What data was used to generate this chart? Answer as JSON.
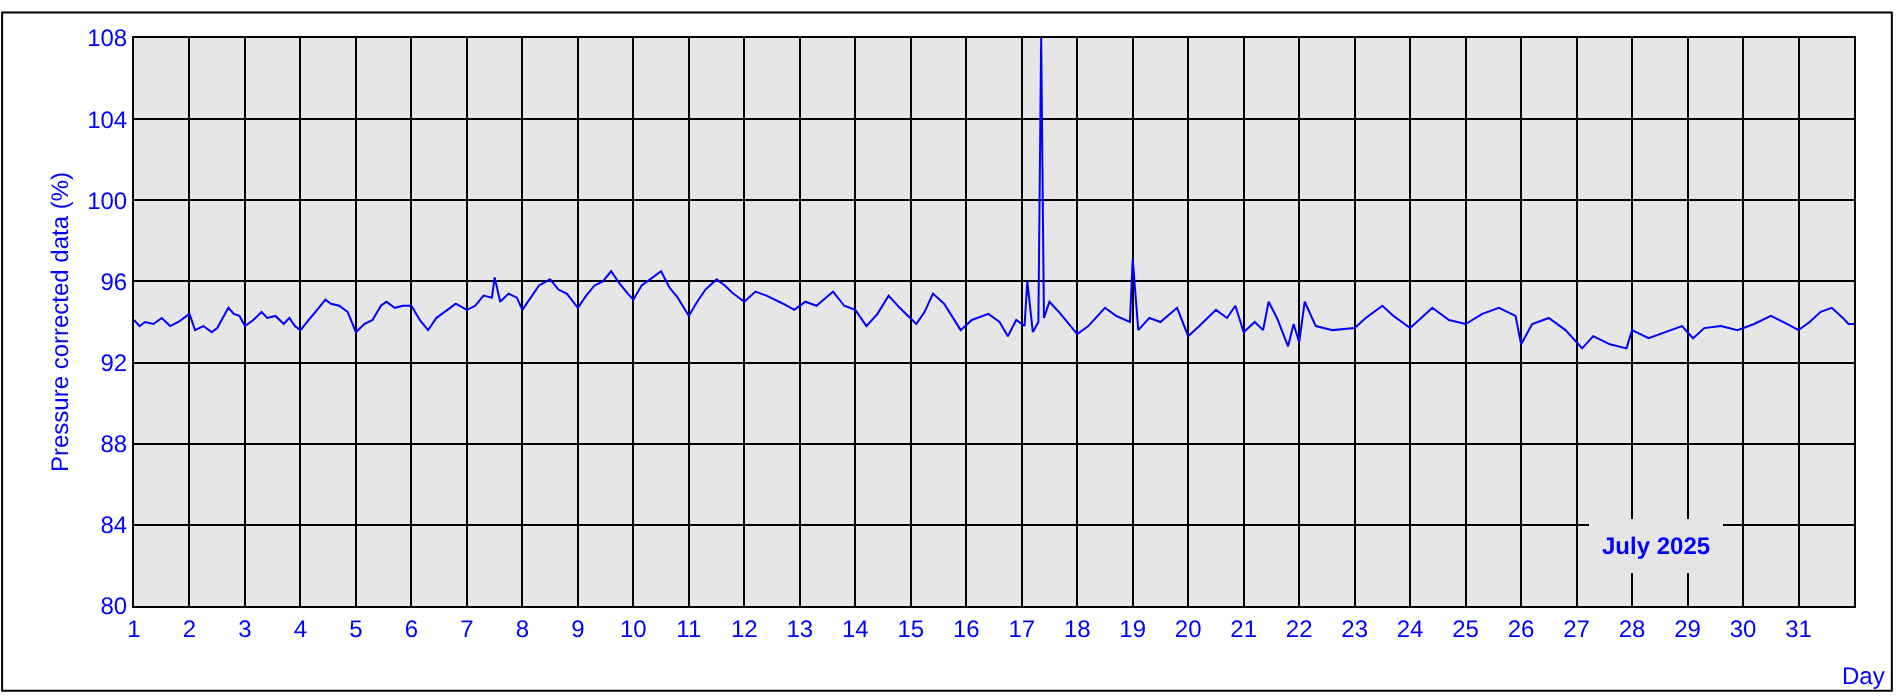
{
  "chart_data": {
    "type": "line",
    "ylabel": "Pressure corrected data (%)",
    "xlabel": "Day",
    "annotations": [
      "July 2025"
    ],
    "x": [
      1.0,
      1.1,
      1.2,
      1.35,
      1.5,
      1.65,
      1.8,
      1.95,
      2.0,
      2.1,
      2.25,
      2.4,
      2.5,
      2.6,
      2.7,
      2.8,
      2.9,
      3.0,
      3.15,
      3.3,
      3.4,
      3.55,
      3.7,
      3.8,
      3.9,
      4.0,
      4.15,
      4.3,
      4.45,
      4.55,
      4.7,
      4.85,
      5.0,
      5.15,
      5.3,
      5.45,
      5.55,
      5.7,
      5.85,
      6.0,
      6.15,
      6.3,
      6.45,
      6.6,
      6.8,
      7.0,
      7.15,
      7.3,
      7.45,
      7.5,
      7.6,
      7.75,
      7.9,
      8.0,
      8.15,
      8.3,
      8.5,
      8.65,
      8.8,
      9.0,
      9.15,
      9.3,
      9.45,
      9.6,
      9.75,
      9.9,
      10.0,
      10.15,
      10.3,
      10.5,
      10.65,
      10.8,
      11.0,
      11.15,
      11.3,
      11.5,
      11.65,
      11.8,
      12.0,
      12.2,
      12.4,
      12.7,
      12.9,
      13.1,
      13.3,
      13.6,
      13.8,
      14.0,
      14.2,
      14.4,
      14.6,
      14.8,
      15.1,
      15.25,
      15.4,
      15.6,
      15.9,
      16.1,
      16.4,
      16.6,
      16.75,
      16.9,
      17.05,
      17.1,
      17.2,
      17.3,
      17.35,
      17.4,
      17.5,
      17.7,
      18.0,
      18.2,
      18.5,
      18.7,
      18.95,
      19.0,
      19.1,
      19.3,
      19.5,
      19.8,
      20.0,
      20.2,
      20.5,
      20.7,
      20.85,
      21.0,
      21.2,
      21.35,
      21.45,
      21.6,
      21.8,
      21.9,
      22.0,
      22.1,
      22.3,
      22.6,
      23.0,
      23.2,
      23.5,
      23.7,
      24.0,
      24.2,
      24.4,
      24.7,
      25.0,
      25.3,
      25.6,
      25.9,
      26.0,
      26.2,
      26.5,
      26.8,
      27.1,
      27.3,
      27.6,
      27.9,
      28.0,
      28.3,
      28.6,
      28.9,
      29.1,
      29.3,
      29.6,
      29.9,
      30.2,
      30.5,
      30.8,
      31.0,
      31.2,
      31.4,
      31.6,
      31.8,
      31.9,
      32.0
    ],
    "values": [
      94.1,
      93.8,
      94.0,
      93.9,
      94.2,
      93.8,
      94.0,
      94.3,
      94.4,
      93.6,
      93.8,
      93.5,
      93.7,
      94.2,
      94.7,
      94.4,
      94.3,
      93.8,
      94.1,
      94.5,
      94.2,
      94.3,
      93.9,
      94.2,
      93.8,
      93.6,
      94.1,
      94.6,
      95.1,
      94.9,
      94.8,
      94.5,
      93.5,
      93.9,
      94.1,
      94.8,
      95.0,
      94.7,
      94.8,
      94.8,
      94.1,
      93.6,
      94.2,
      94.5,
      94.9,
      94.6,
      94.8,
      95.3,
      95.2,
      96.2,
      95.0,
      95.4,
      95.2,
      94.6,
      95.2,
      95.8,
      96.1,
      95.6,
      95.4,
      94.7,
      95.3,
      95.8,
      96.0,
      96.5,
      95.9,
      95.4,
      95.1,
      95.8,
      96.1,
      96.5,
      95.7,
      95.2,
      94.3,
      95.0,
      95.6,
      96.1,
      95.8,
      95.4,
      95.0,
      95.5,
      95.3,
      94.9,
      94.6,
      95.0,
      94.8,
      95.5,
      94.8,
      94.6,
      93.8,
      94.4,
      95.3,
      94.7,
      93.9,
      94.5,
      95.4,
      94.9,
      93.6,
      94.1,
      94.4,
      94.0,
      93.3,
      94.1,
      93.8,
      96.0,
      93.5,
      94.0,
      108,
      94.2,
      95.0,
      94.4,
      93.4,
      93.8,
      94.7,
      94.3,
      94.0,
      97.1,
      93.6,
      94.2,
      94.0,
      94.7,
      93.3,
      93.8,
      94.6,
      94.2,
      94.8,
      93.5,
      94.0,
      93.6,
      95.0,
      94.2,
      92.8,
      93.9,
      93.0,
      95.0,
      93.8,
      93.6,
      93.7,
      94.2,
      94.8,
      94.3,
      93.7,
      94.2,
      94.7,
      94.1,
      93.9,
      94.4,
      94.7,
      94.3,
      92.9,
      93.9,
      94.2,
      93.6,
      92.7,
      93.3,
      92.9,
      92.7,
      93.6,
      93.2,
      93.5,
      93.8,
      93.2,
      93.7,
      93.8,
      93.6,
      93.9,
      94.3,
      93.9,
      93.6,
      94.0,
      94.5,
      94.7,
      94.2,
      93.9,
      93.9
    ],
    "color": "#0000ff",
    "xlim": [
      1,
      32
    ],
    "xticks": [
      1,
      2,
      3,
      4,
      5,
      6,
      7,
      8,
      9,
      10,
      11,
      12,
      13,
      14,
      15,
      16,
      17,
      18,
      19,
      20,
      21,
      22,
      23,
      24,
      25,
      26,
      27,
      28,
      29,
      30,
      31
    ],
    "ylim": [
      80,
      108
    ],
    "yticks": [
      80,
      84,
      88,
      92,
      96,
      100,
      104,
      108
    ],
    "grid": true,
    "marker": "none",
    "line_style": "solid",
    "legend": false
  }
}
